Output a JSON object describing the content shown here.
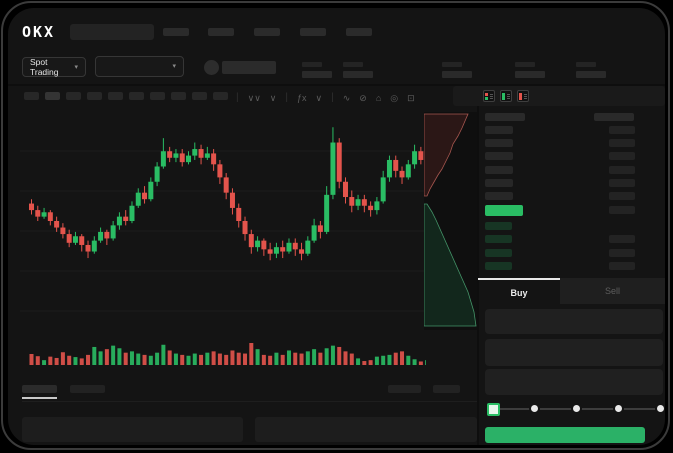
{
  "app": {
    "logo": "OKX"
  },
  "header": {
    "nav_placeholder_count": 5
  },
  "subheader": {
    "market_dropdown_label": "Spot Trading",
    "chevron": "▾",
    "stat_group_count": 5
  },
  "toolbar": {
    "timeframe_placeholder_count": 10,
    "icons": [
      {
        "name": "chart-type-icon",
        "glyph": "∨∨",
        "divider_after": false
      },
      {
        "name": "chart-style-icon",
        "glyph": "∨",
        "divider_after": true
      },
      {
        "name": "indicators-icon",
        "glyph": "ƒx",
        "divider_after": false
      },
      {
        "name": "indicator-menu-icon",
        "glyph": "∨",
        "divider_after": true
      },
      {
        "name": "line-draw-icon",
        "glyph": "∿",
        "divider_after": false
      },
      {
        "name": "measure-icon",
        "glyph": "⊘",
        "divider_after": false
      },
      {
        "name": "screenshot-icon",
        "glyph": "⌂",
        "divider_after": false
      },
      {
        "name": "chart-settings-icon",
        "glyph": "◎",
        "divider_after": false
      },
      {
        "name": "fullscreen-icon",
        "glyph": "⊡",
        "divider_after": false
      }
    ]
  },
  "order_book": {
    "view_icons": [
      "book-split-view-icon",
      "book-bids-view-icon",
      "book-asks-view-icon"
    ],
    "ask_row_count": 6,
    "bid_row_count": 4,
    "last_price_color": "#2abd64"
  },
  "trade_panel": {
    "tabs": [
      {
        "label": "Buy",
        "active": true
      },
      {
        "label": "Sell",
        "active": false
      }
    ],
    "input_count": 3,
    "slider": {
      "stops": 5,
      "selected_index": 0
    },
    "submit_color": "#2bb167"
  },
  "colors": {
    "up_green": "#2abd64",
    "down_red": "#e4544c",
    "bid_skeleton": "#173524",
    "grid": "#1c1c1c",
    "frame_bg": "#141414"
  },
  "chart_data": [
    {
      "type": "candlestick",
      "title": "",
      "unit": "relative price scale 0-100 (no axis labels visible; skeleton UI)",
      "ylim": [
        0,
        100
      ],
      "grid": true,
      "gridlines_y_rel": [
        43,
        83,
        123,
        163,
        203
      ],
      "candles_oclh": [
        [
          58,
          55,
          53,
          60
        ],
        [
          55,
          52,
          50,
          57
        ],
        [
          52,
          54,
          51,
          56
        ],
        [
          54,
          50,
          48,
          55
        ],
        [
          50,
          47,
          45,
          52
        ],
        [
          47,
          44,
          42,
          49
        ],
        [
          44,
          40,
          38,
          46
        ],
        [
          40,
          43,
          39,
          45
        ],
        [
          43,
          39,
          36,
          44
        ],
        [
          39,
          36,
          33,
          41
        ],
        [
          36,
          41,
          35,
          43
        ],
        [
          41,
          45,
          40,
          47
        ],
        [
          45,
          42,
          39,
          46
        ],
        [
          42,
          48,
          41,
          50
        ],
        [
          48,
          52,
          46,
          54
        ],
        [
          52,
          50,
          48,
          55
        ],
        [
          50,
          57,
          49,
          59
        ],
        [
          57,
          63,
          56,
          65
        ],
        [
          63,
          60,
          58,
          66
        ],
        [
          60,
          68,
          59,
          70
        ],
        [
          68,
          75,
          66,
          77
        ],
        [
          75,
          82,
          74,
          88
        ],
        [
          82,
          79,
          77,
          84
        ],
        [
          79,
          81,
          77,
          83
        ],
        [
          81,
          77,
          75,
          83
        ],
        [
          77,
          80,
          76,
          82
        ],
        [
          80,
          83,
          78,
          86
        ],
        [
          83,
          79,
          76,
          85
        ],
        [
          79,
          81,
          78,
          84
        ],
        [
          81,
          76,
          73,
          83
        ],
        [
          76,
          70,
          67,
          78
        ],
        [
          70,
          63,
          60,
          72
        ],
        [
          63,
          56,
          53,
          65
        ],
        [
          56,
          50,
          47,
          58
        ],
        [
          50,
          44,
          41,
          52
        ],
        [
          44,
          38,
          35,
          46
        ],
        [
          38,
          41,
          36,
          43
        ],
        [
          41,
          37,
          34,
          42
        ],
        [
          37,
          35,
          32,
          40
        ],
        [
          35,
          38,
          33,
          40
        ],
        [
          38,
          36,
          33,
          41
        ],
        [
          36,
          40,
          35,
          42
        ],
        [
          40,
          37,
          34,
          42
        ],
        [
          37,
          35,
          32,
          40
        ],
        [
          35,
          41,
          34,
          43
        ],
        [
          41,
          48,
          40,
          51
        ],
        [
          48,
          45,
          42,
          50
        ],
        [
          45,
          62,
          44,
          66
        ],
        [
          62,
          86,
          60,
          93
        ],
        [
          86,
          68,
          65,
          88
        ],
        [
          68,
          61,
          58,
          70
        ],
        [
          61,
          57,
          54,
          64
        ],
        [
          57,
          60,
          55,
          62
        ],
        [
          60,
          57,
          54,
          62
        ],
        [
          57,
          55,
          52,
          59
        ],
        [
          55,
          59,
          53,
          61
        ],
        [
          59,
          70,
          58,
          73
        ],
        [
          70,
          78,
          68,
          80
        ],
        [
          78,
          73,
          70,
          80
        ],
        [
          73,
          70,
          67,
          75
        ],
        [
          70,
          76,
          69,
          78
        ],
        [
          76,
          82,
          74,
          85
        ],
        [
          82,
          78,
          76,
          84
        ],
        [
          78,
          84,
          77,
          87
        ]
      ]
    },
    {
      "type": "bar",
      "role": "volume",
      "unit": "relative volume 0-100",
      "values": [
        50,
        40,
        22,
        38,
        32,
        58,
        42,
        36,
        30,
        46,
        82,
        62,
        72,
        88,
        76,
        56,
        62,
        52,
        46,
        42,
        56,
        92,
        66,
        52,
        46,
        42,
        52,
        46,
        56,
        62,
        52,
        46,
        66,
        56,
        52,
        100,
        72,
        46,
        42,
        56,
        46,
        66,
        56,
        52,
        62,
        72,
        56,
        76,
        88,
        82,
        62,
        52,
        30,
        18,
        22,
        38,
        42,
        46,
        56,
        62,
        42,
        26,
        16,
        22
      ]
    },
    {
      "type": "area",
      "role": "depth",
      "orientation": "vertical",
      "asks_line": [
        [
          44,
          2
        ],
        [
          41,
          9
        ],
        [
          38,
          16
        ],
        [
          34,
          24
        ],
        [
          29,
          32
        ],
        [
          26,
          41
        ],
        [
          22,
          49
        ],
        [
          18,
          57
        ],
        [
          14,
          63
        ],
        [
          10,
          70
        ],
        [
          6,
          77
        ],
        [
          3,
          84
        ]
      ],
      "bids_line": [
        [
          3,
          92
        ],
        [
          8,
          100
        ],
        [
          12,
          108
        ],
        [
          16,
          117
        ],
        [
          20,
          126
        ],
        [
          24,
          135
        ],
        [
          28,
          144
        ],
        [
          32,
          153
        ],
        [
          36,
          162
        ],
        [
          40,
          171
        ],
        [
          44,
          180
        ],
        [
          47,
          190
        ],
        [
          50,
          200
        ],
        [
          51,
          207
        ],
        [
          52,
          214
        ]
      ]
    }
  ]
}
